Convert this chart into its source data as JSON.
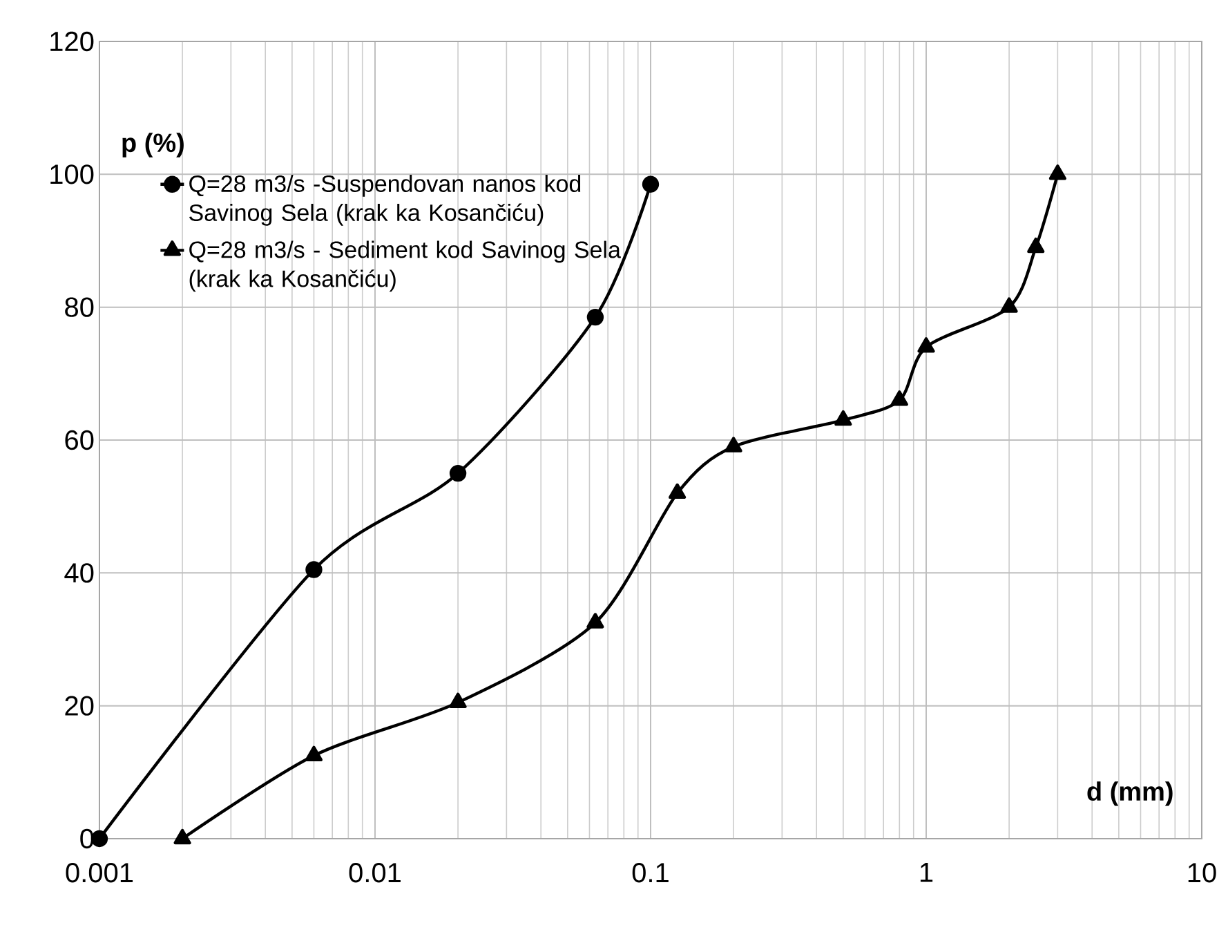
{
  "chart_data": {
    "type": "line",
    "xlabel": "d (mm)",
    "ylabel": "p (%)",
    "log": "x",
    "xlim": [
      0.001,
      10
    ],
    "xticks": [
      0.001,
      0.01,
      0.1,
      1,
      10
    ],
    "ylim": [
      0,
      120
    ],
    "yticks": [
      0,
      20,
      40,
      60,
      80,
      100,
      120
    ],
    "grid": true,
    "legend": "top left",
    "line_style": "solid",
    "series": [
      {
        "name": "Q=28 m3/s -Suspendovan nanos kod Savinog Sela (krak ka Kosančiću)",
        "color": "#000000",
        "marker": "circle",
        "x": [
          0.001,
          0.006,
          0.02,
          0.063,
          0.1
        ],
        "values": [
          0,
          40.5,
          55,
          78.5,
          98.5
        ]
      },
      {
        "name": "Q=28 m3/s - Sediment kod Savinog Sela (krak ka Kosančiću)",
        "color": "#000000",
        "marker": "triangle",
        "x": [
          0.002,
          0.006,
          0.02,
          0.063,
          0.125,
          0.2,
          0.5,
          0.8,
          1,
          2,
          2.5,
          3
        ],
        "values": [
          0,
          12.5,
          20.5,
          32.5,
          52,
          59,
          63,
          66,
          74,
          80,
          89,
          100
        ]
      }
    ]
  }
}
